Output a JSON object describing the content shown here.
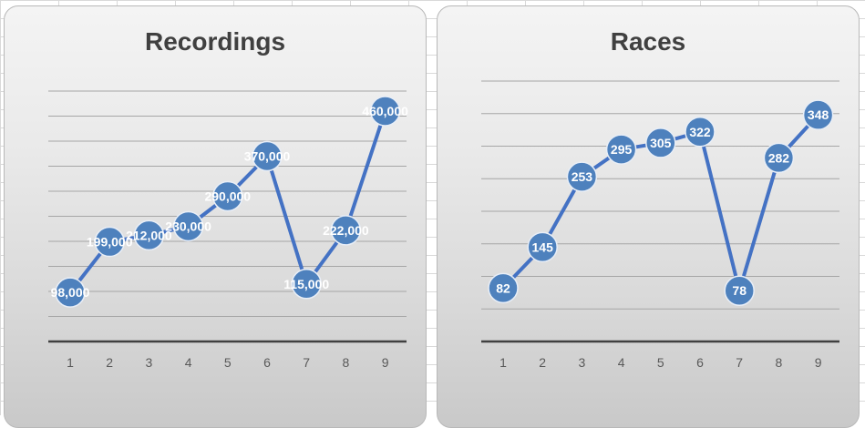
{
  "chart_data": [
    {
      "type": "line",
      "title": "Recordings",
      "categories": [
        "1",
        "2",
        "3",
        "4",
        "5",
        "6",
        "7",
        "8",
        "9"
      ],
      "values": [
        98000,
        199000,
        212000,
        230000,
        290000,
        370000,
        115000,
        222000,
        460000
      ],
      "data_labels": [
        "98,000",
        "199,000",
        "212,000",
        "230,000",
        "290,000",
        "370,000",
        "115,000",
        "222,000",
        "460,000"
      ],
      "ylim": [
        0,
        520000
      ],
      "y_gridline_step": 50000,
      "grid": true,
      "legend": "none",
      "series_color": "#4e81bd",
      "line_color": "#4472c4"
    },
    {
      "type": "line",
      "title": "Races",
      "categories": [
        "1",
        "2",
        "3",
        "4",
        "5",
        "6",
        "7",
        "8",
        "9"
      ],
      "values": [
        82,
        145,
        253,
        295,
        305,
        322,
        78,
        282,
        348
      ],
      "data_labels": [
        "82",
        "145",
        "253",
        "295",
        "305",
        "322",
        "78",
        "282",
        "348"
      ],
      "ylim": [
        0,
        400
      ],
      "y_gridline_step": 50,
      "grid": true,
      "legend": "none",
      "series_color": "#4e81bd",
      "line_color": "#4472c4"
    }
  ]
}
